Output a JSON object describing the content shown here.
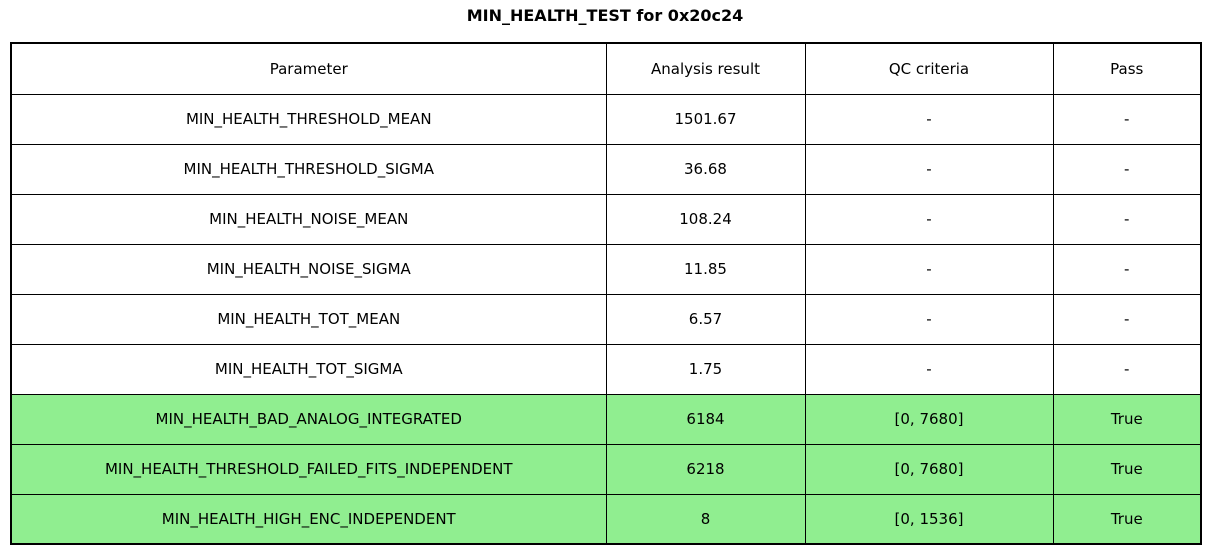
{
  "colors": {
    "background": "#ffffff",
    "border": "#000000",
    "text": "#000000",
    "highlight": "#90ee90"
  },
  "chart_data": {
    "type": "table",
    "title": "MIN_HEALTH_TEST for 0x20c24",
    "columns": [
      "Parameter",
      "Analysis result",
      "QC criteria",
      "Pass"
    ],
    "rows": [
      {
        "cells": [
          "MIN_HEALTH_THRESHOLD_MEAN",
          "1501.67",
          "-",
          "-"
        ],
        "highlight": false
      },
      {
        "cells": [
          "MIN_HEALTH_THRESHOLD_SIGMA",
          "36.68",
          "-",
          "-"
        ],
        "highlight": false
      },
      {
        "cells": [
          "MIN_HEALTH_NOISE_MEAN",
          "108.24",
          "-",
          "-"
        ],
        "highlight": false
      },
      {
        "cells": [
          "MIN_HEALTH_NOISE_SIGMA",
          "11.85",
          "-",
          "-"
        ],
        "highlight": false
      },
      {
        "cells": [
          "MIN_HEALTH_TOT_MEAN",
          "6.57",
          "-",
          "-"
        ],
        "highlight": false
      },
      {
        "cells": [
          "MIN_HEALTH_TOT_SIGMA",
          "1.75",
          "-",
          "-"
        ],
        "highlight": false
      },
      {
        "cells": [
          "MIN_HEALTH_BAD_ANALOG_INTEGRATED",
          "6184",
          "[0, 7680]",
          "True"
        ],
        "highlight": true
      },
      {
        "cells": [
          "MIN_HEALTH_THRESHOLD_FAILED_FITS_INDEPENDENT",
          "6218",
          "[0, 7680]",
          "True"
        ],
        "highlight": true
      },
      {
        "cells": [
          "MIN_HEALTH_HIGH_ENC_INDEPENDENT",
          "8",
          "[0, 1536]",
          "True"
        ],
        "highlight": true
      }
    ],
    "layout": {
      "legend": "none",
      "grid": "table-borders",
      "highlight_meaning": "row passed QC check"
    }
  }
}
